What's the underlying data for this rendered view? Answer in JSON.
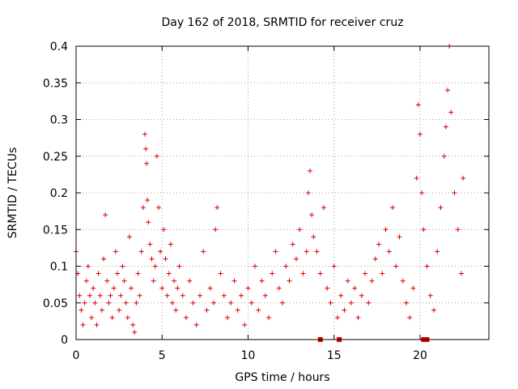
{
  "chart_data": {
    "type": "scatter",
    "title": "Day 162 of 2018, SRMTID for receiver cruz",
    "xlabel": "GPS time / hours",
    "ylabel": "SRMTID / TECUs",
    "xlim": [
      0,
      24
    ],
    "ylim": [
      0,
      0.4
    ],
    "xticks": [
      0,
      5,
      10,
      15,
      20
    ],
    "xtick_labels": [
      "0",
      "5",
      "10",
      "15",
      "20"
    ],
    "yticks": [
      0,
      0.05,
      0.1,
      0.15,
      0.2,
      0.25,
      0.3,
      0.35,
      0.4
    ],
    "ytick_labels": [
      "0",
      "0.05",
      "0.1",
      "0.15",
      "0.2",
      "0.25",
      "0.3",
      "0.35",
      "0.4"
    ],
    "grid": true,
    "marker_color": "#dd0000",
    "series": [
      {
        "name": "SRMTID",
        "marker": "plus",
        "x": [
          0.0,
          0.1,
          0.2,
          0.3,
          0.4,
          0.5,
          0.6,
          0.7,
          0.8,
          0.9,
          1.0,
          1.1,
          1.2,
          1.3,
          1.4,
          1.5,
          1.6,
          1.7,
          1.8,
          1.9,
          2.0,
          2.1,
          2.2,
          2.3,
          2.4,
          2.5,
          2.6,
          2.7,
          2.8,
          2.9,
          3.0,
          3.1,
          3.2,
          3.3,
          3.4,
          3.5,
          3.6,
          3.7,
          3.8,
          3.9,
          4.0,
          4.05,
          4.1,
          4.15,
          4.2,
          4.3,
          4.4,
          4.5,
          4.6,
          4.7,
          4.8,
          4.9,
          5.0,
          5.1,
          5.2,
          5.3,
          5.4,
          5.5,
          5.6,
          5.7,
          5.8,
          5.9,
          6.0,
          6.2,
          6.4,
          6.6,
          6.8,
          7.0,
          7.2,
          7.4,
          7.6,
          7.8,
          8.0,
          8.1,
          8.2,
          8.4,
          8.6,
          8.8,
          9.0,
          9.2,
          9.4,
          9.6,
          9.8,
          10.0,
          10.2,
          10.4,
          10.6,
          10.8,
          11.0,
          11.2,
          11.4,
          11.6,
          11.8,
          12.0,
          12.2,
          12.4,
          12.6,
          12.8,
          13.0,
          13.2,
          13.4,
          13.5,
          13.6,
          13.7,
          13.8,
          14.0,
          14.2,
          14.4,
          14.6,
          14.8,
          15.0,
          15.2,
          15.4,
          15.6,
          15.8,
          16.0,
          16.2,
          16.4,
          16.6,
          16.8,
          17.0,
          17.2,
          17.4,
          17.6,
          17.8,
          18.0,
          18.2,
          18.4,
          18.6,
          18.8,
          19.0,
          19.2,
          19.4,
          19.6,
          19.8,
          19.9,
          20.0,
          20.1,
          20.2,
          20.4,
          20.6,
          20.8,
          21.0,
          21.2,
          21.4,
          21.5,
          21.6,
          21.7,
          21.8,
          22.0,
          22.2,
          22.4,
          22.5
        ],
        "y": [
          0.12,
          0.09,
          0.06,
          0.04,
          0.02,
          0.05,
          0.08,
          0.1,
          0.06,
          0.03,
          0.07,
          0.05,
          0.02,
          0.09,
          0.06,
          0.04,
          0.11,
          0.17,
          0.08,
          0.05,
          0.06,
          0.03,
          0.07,
          0.12,
          0.09,
          0.04,
          0.06,
          0.1,
          0.08,
          0.05,
          0.03,
          0.14,
          0.07,
          0.02,
          0.01,
          0.05,
          0.09,
          0.06,
          0.12,
          0.18,
          0.28,
          0.26,
          0.24,
          0.19,
          0.16,
          0.13,
          0.11,
          0.08,
          0.1,
          0.25,
          0.18,
          0.12,
          0.07,
          0.15,
          0.11,
          0.06,
          0.09,
          0.13,
          0.05,
          0.08,
          0.04,
          0.07,
          0.1,
          0.06,
          0.03,
          0.08,
          0.05,
          0.02,
          0.06,
          0.12,
          0.04,
          0.07,
          0.05,
          0.15,
          0.18,
          0.09,
          0.06,
          0.03,
          0.05,
          0.08,
          0.04,
          0.06,
          0.02,
          0.07,
          0.05,
          0.1,
          0.04,
          0.08,
          0.06,
          0.03,
          0.09,
          0.12,
          0.07,
          0.05,
          0.1,
          0.08,
          0.13,
          0.11,
          0.15,
          0.09,
          0.12,
          0.2,
          0.23,
          0.17,
          0.14,
          0.12,
          0.09,
          0.18,
          0.07,
          0.05,
          0.1,
          0.03,
          0.06,
          0.04,
          0.08,
          0.05,
          0.07,
          0.03,
          0.06,
          0.09,
          0.05,
          0.08,
          0.11,
          0.13,
          0.09,
          0.15,
          0.12,
          0.18,
          0.1,
          0.14,
          0.08,
          0.05,
          0.03,
          0.07,
          0.22,
          0.32,
          0.28,
          0.2,
          0.15,
          0.1,
          0.06,
          0.04,
          0.12,
          0.18,
          0.25,
          0.29,
          0.34,
          0.4,
          0.31,
          0.2,
          0.15,
          0.09,
          0.22
        ]
      }
    ],
    "zero_markers_x": [
      14.2,
      15.3,
      20.2,
      20.4
    ]
  }
}
